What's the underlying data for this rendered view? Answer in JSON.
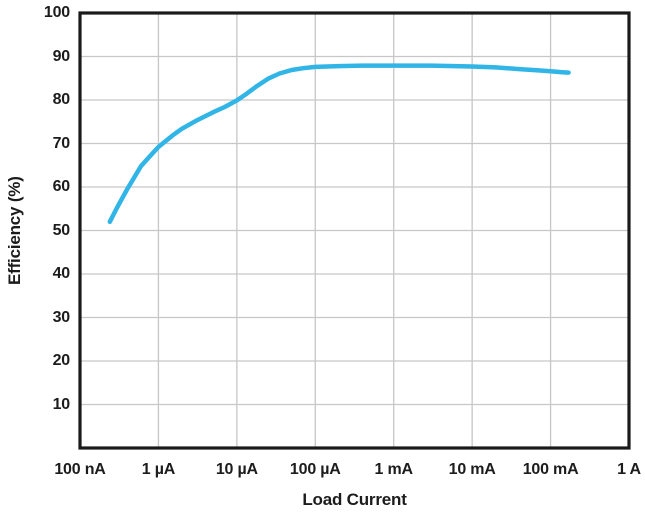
{
  "figure": {
    "background": "#ffffff"
  },
  "chart_data": {
    "type": "line",
    "title": "",
    "xlabel": "Load Current",
    "ylabel": "Efficiency (%)",
    "x_scale": "log",
    "xlim": [
      1e-07,
      1
    ],
    "ylim": [
      0,
      100
    ],
    "grid": true,
    "legend": "none",
    "x_ticks": [
      {
        "value": 1e-07,
        "label": "100 nA"
      },
      {
        "value": 1e-06,
        "label": "1 µA"
      },
      {
        "value": 1e-05,
        "label": "10 µA"
      },
      {
        "value": 0.0001,
        "label": "100 µA"
      },
      {
        "value": 0.001,
        "label": "1 mA"
      },
      {
        "value": 0.01,
        "label": "10 mA"
      },
      {
        "value": 0.1,
        "label": "100 mA"
      },
      {
        "value": 1,
        "label": "1 A"
      }
    ],
    "y_ticks": [
      {
        "value": 10,
        "label": "10"
      },
      {
        "value": 20,
        "label": "20"
      },
      {
        "value": 30,
        "label": "30"
      },
      {
        "value": 40,
        "label": "40"
      },
      {
        "value": 50,
        "label": "50"
      },
      {
        "value": 60,
        "label": "60"
      },
      {
        "value": 70,
        "label": "70"
      },
      {
        "value": 80,
        "label": "80"
      },
      {
        "value": 90,
        "label": "90"
      },
      {
        "value": 100,
        "label": "100"
      }
    ],
    "series": [
      {
        "name": "Efficiency",
        "color": "#31b5e6",
        "x": [
          2.4e-07,
          3e-07,
          4e-07,
          6e-07,
          8e-07,
          1e-06,
          1.5e-06,
          2e-06,
          3e-06,
          5e-06,
          7e-06,
          1e-05,
          1.3e-05,
          1.8e-05,
          2.5e-05,
          3.5e-05,
          5e-05,
          7e-05,
          0.0001,
          0.0002,
          0.0004,
          0.001,
          0.003,
          0.006,
          0.01,
          0.02,
          0.04,
          0.07,
          0.1,
          0.14,
          0.17
        ],
        "y": [
          52.0,
          55.4,
          59.5,
          64.8,
          67.3,
          69.2,
          71.8,
          73.4,
          75.2,
          77.2,
          78.4,
          79.9,
          81.3,
          83.2,
          84.9,
          86.1,
          86.9,
          87.3,
          87.6,
          87.8,
          87.9,
          87.9,
          87.9,
          87.8,
          87.7,
          87.5,
          87.1,
          86.8,
          86.6,
          86.4,
          86.3
        ]
      }
    ],
    "colors": {
      "grid": "#c7c7c7",
      "frame": "#1a1a1a",
      "text": "#1c1c1c",
      "curve": "#31b5e6"
    }
  }
}
